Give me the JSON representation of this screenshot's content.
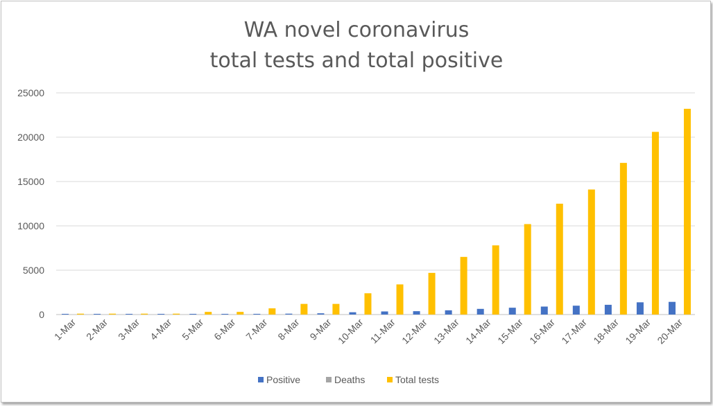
{
  "chart_data": {
    "type": "bar",
    "title_line1": "WA novel coronavirus",
    "title_line2": "total tests and total positive",
    "xlabel": "",
    "ylabel": "",
    "ylim": [
      0,
      25000
    ],
    "yticks": [
      0,
      5000,
      10000,
      15000,
      20000,
      25000
    ],
    "grid": true,
    "legend_position": "bottom",
    "categories": [
      "1-Mar",
      "2-Mar",
      "3-Mar",
      "4-Mar",
      "5-Mar",
      "6-Mar",
      "7-Mar",
      "8-Mar",
      "9-Mar",
      "10-Mar",
      "11-Mar",
      "12-Mar",
      "13-Mar",
      "14-Mar",
      "15-Mar",
      "16-Mar",
      "17-Mar",
      "18-Mar",
      "19-Mar",
      "20-Mar"
    ],
    "series": [
      {
        "name": "Positive",
        "color": "#4472c4",
        "values": [
          60,
          60,
          60,
          60,
          70,
          70,
          80,
          100,
          140,
          260,
          350,
          380,
          480,
          640,
          770,
          900,
          1000,
          1100,
          1380,
          1430
        ]
      },
      {
        "name": "Deaths",
        "color": "#a5a5a5",
        "values": [
          0,
          0,
          0,
          0,
          0,
          0,
          0,
          0,
          0,
          0,
          0,
          0,
          0,
          0,
          0,
          0,
          0,
          0,
          0,
          0
        ]
      },
      {
        "name": "Total tests",
        "color": "#ffc000",
        "values": [
          100,
          100,
          100,
          100,
          300,
          300,
          700,
          1200,
          1200,
          2400,
          3400,
          4700,
          6500,
          7800,
          10200,
          12500,
          14100,
          17100,
          20600,
          23200
        ]
      }
    ]
  }
}
